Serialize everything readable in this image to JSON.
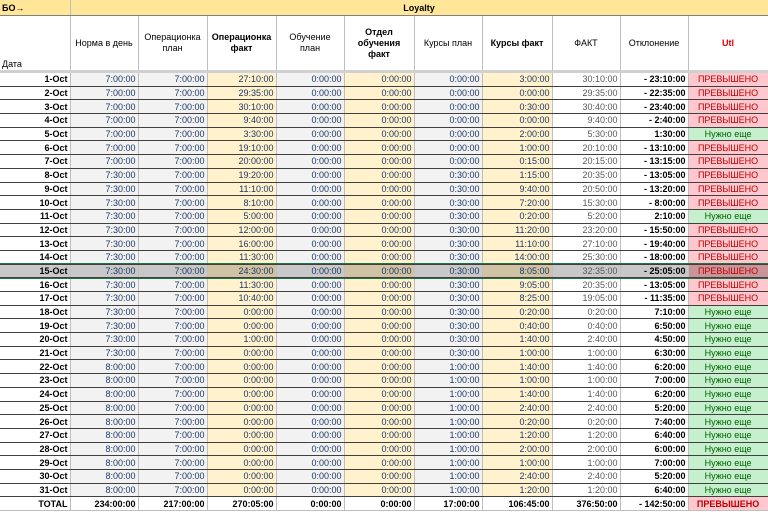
{
  "top": {
    "left": "БО→",
    "title": "Loyalty"
  },
  "columns": [
    "Дата",
    "Норма в день",
    "Операционка план",
    "Операционка факт",
    "Обучение план",
    "Отдел обучения факт",
    "Курсы план",
    "Курсы факт",
    "ФАКТ",
    "Отклонение",
    "Utl"
  ],
  "selected_row": "15-Oct",
  "colors": {
    "over_bg": "#ffc7ce",
    "over_text": "#c00000",
    "need_bg": "#c6efce",
    "need_text": "#006100",
    "plan_bg": "#f2f2f2",
    "fact_bg": "#fff2cc",
    "header_bg": "#ffe699"
  },
  "rows": [
    [
      "1-Oct",
      "7:00:00",
      "7:00:00",
      "27:10:00",
      "0:00:00",
      "0:00:00",
      "0:00:00",
      "3:00:00",
      "30:10:00",
      "- 23:10:00",
      "ПРЕВЫШЕНО"
    ],
    [
      "2-Oct",
      "7:00:00",
      "7:00:00",
      "29:35:00",
      "0:00:00",
      "0:00:00",
      "0:00:00",
      "0:00:00",
      "29:35:00",
      "- 22:35:00",
      "ПРЕВЫШЕНО"
    ],
    [
      "3-Oct",
      "7:00:00",
      "7:00:00",
      "30:10:00",
      "0:00:00",
      "0:00:00",
      "0:00:00",
      "0:30:00",
      "30:40:00",
      "- 23:40:00",
      "ПРЕВЫШЕНО"
    ],
    [
      "4-Oct",
      "7:00:00",
      "7:00:00",
      "9:40:00",
      "0:00:00",
      "0:00:00",
      "0:00:00",
      "0:00:00",
      "9:40:00",
      "- 2:40:00",
      "ПРЕВЫШЕНО"
    ],
    [
      "5-Oct",
      "7:00:00",
      "7:00:00",
      "3:30:00",
      "0:00:00",
      "0:00:00",
      "0:00:00",
      "2:00:00",
      "5:30:00",
      "1:30:00",
      "Нужно еще"
    ],
    [
      "6-Oct",
      "7:00:00",
      "7:00:00",
      "19:10:00",
      "0:00:00",
      "0:00:00",
      "0:00:00",
      "1:00:00",
      "20:10:00",
      "- 13:10:00",
      "ПРЕВЫШЕНО"
    ],
    [
      "7-Oct",
      "7:00:00",
      "7:00:00",
      "20:00:00",
      "0:00:00",
      "0:00:00",
      "0:00:00",
      "0:15:00",
      "20:15:00",
      "- 13:15:00",
      "ПРЕВЫШЕНО"
    ],
    [
      "8-Oct",
      "7:30:00",
      "7:00:00",
      "19:20:00",
      "0:00:00",
      "0:00:00",
      "0:30:00",
      "1:15:00",
      "20:35:00",
      "- 13:05:00",
      "ПРЕВЫШЕНО"
    ],
    [
      "9-Oct",
      "7:30:00",
      "7:00:00",
      "11:10:00",
      "0:00:00",
      "0:00:00",
      "0:30:00",
      "9:40:00",
      "20:50:00",
      "- 13:20:00",
      "ПРЕВЫШЕНО"
    ],
    [
      "10-Oct",
      "7:30:00",
      "7:00:00",
      "8:10:00",
      "0:00:00",
      "0:00:00",
      "0:30:00",
      "7:20:00",
      "15:30:00",
      "- 8:00:00",
      "ПРЕВЫШЕНО"
    ],
    [
      "11-Oct",
      "7:30:00",
      "7:00:00",
      "5:00:00",
      "0:00:00",
      "0:00:00",
      "0:30:00",
      "0:20:00",
      "5:20:00",
      "2:10:00",
      "Нужно еще"
    ],
    [
      "12-Oct",
      "7:30:00",
      "7:00:00",
      "12:00:00",
      "0:00:00",
      "0:00:00",
      "0:30:00",
      "11:20:00",
      "23:20:00",
      "- 15:50:00",
      "ПРЕВЫШЕНО"
    ],
    [
      "13-Oct",
      "7:30:00",
      "7:00:00",
      "16:00:00",
      "0:00:00",
      "0:00:00",
      "0:30:00",
      "11:10:00",
      "27:10:00",
      "- 19:40:00",
      "ПРЕВЫШЕНО"
    ],
    [
      "14-Oct",
      "7:30:00",
      "7:00:00",
      "11:30:00",
      "0:00:00",
      "0:00:00",
      "0:30:00",
      "14:00:00",
      "25:30:00",
      "- 18:00:00",
      "ПРЕВЫШЕНО"
    ],
    [
      "15-Oct",
      "7:30:00",
      "7:00:00",
      "24:30:00",
      "0:00:00",
      "0:00:00",
      "0:30:00",
      "8:05:00",
      "32:35:00",
      "- 25:05:00",
      "ПРЕВЫШЕНО"
    ],
    [
      "16-Oct",
      "7:30:00",
      "7:00:00",
      "11:30:00",
      "0:00:00",
      "0:00:00",
      "0:30:00",
      "9:05:00",
      "20:35:00",
      "- 13:05:00",
      "ПРЕВЫШЕНО"
    ],
    [
      "17-Oct",
      "7:30:00",
      "7:00:00",
      "10:40:00",
      "0:00:00",
      "0:00:00",
      "0:30:00",
      "8:25:00",
      "19:05:00",
      "- 11:35:00",
      "ПРЕВЫШЕНО"
    ],
    [
      "18-Oct",
      "7:30:00",
      "7:00:00",
      "0:00:00",
      "0:00:00",
      "0:00:00",
      "0:30:00",
      "0:20:00",
      "0:20:00",
      "7:10:00",
      "Нужно еще"
    ],
    [
      "19-Oct",
      "7:30:00",
      "7:00:00",
      "0:00:00",
      "0:00:00",
      "0:00:00",
      "0:30:00",
      "0:40:00",
      "0:40:00",
      "6:50:00",
      "Нужно еще"
    ],
    [
      "20-Oct",
      "7:30:00",
      "7:00:00",
      "1:00:00",
      "0:00:00",
      "0:00:00",
      "0:30:00",
      "1:40:00",
      "2:40:00",
      "4:50:00",
      "Нужно еще"
    ],
    [
      "21-Oct",
      "7:30:00",
      "7:00:00",
      "0:00:00",
      "0:00:00",
      "0:00:00",
      "0:30:00",
      "1:00:00",
      "1:00:00",
      "6:30:00",
      "Нужно еще"
    ],
    [
      "22-Oct",
      "8:00:00",
      "7:00:00",
      "0:00:00",
      "0:00:00",
      "0:00:00",
      "1:00:00",
      "1:40:00",
      "1:40:00",
      "6:20:00",
      "Нужно еще"
    ],
    [
      "23-Oct",
      "8:00:00",
      "7:00:00",
      "0:00:00",
      "0:00:00",
      "0:00:00",
      "1:00:00",
      "1:00:00",
      "1:00:00",
      "7:00:00",
      "Нужно еще"
    ],
    [
      "24-Oct",
      "8:00:00",
      "7:00:00",
      "0:00:00",
      "0:00:00",
      "0:00:00",
      "1:00:00",
      "1:40:00",
      "1:40:00",
      "6:20:00",
      "Нужно еще"
    ],
    [
      "25-Oct",
      "8:00:00",
      "7:00:00",
      "0:00:00",
      "0:00:00",
      "0:00:00",
      "1:00:00",
      "2:40:00",
      "2:40:00",
      "5:20:00",
      "Нужно еще"
    ],
    [
      "26-Oct",
      "8:00:00",
      "7:00:00",
      "0:00:00",
      "0:00:00",
      "0:00:00",
      "1:00:00",
      "0:20:00",
      "0:20:00",
      "7:40:00",
      "Нужно еще"
    ],
    [
      "27-Oct",
      "8:00:00",
      "7:00:00",
      "0:00:00",
      "0:00:00",
      "0:00:00",
      "1:00:00",
      "1:20:00",
      "1:20:00",
      "6:40:00",
      "Нужно еще"
    ],
    [
      "28-Oct",
      "8:00:00",
      "7:00:00",
      "0:00:00",
      "0:00:00",
      "0:00:00",
      "1:00:00",
      "2:00:00",
      "2:00:00",
      "6:00:00",
      "Нужно еще"
    ],
    [
      "29-Oct",
      "8:00:00",
      "7:00:00",
      "0:00:00",
      "0:00:00",
      "0:00:00",
      "1:00:00",
      "1:00:00",
      "1:00:00",
      "7:00:00",
      "Нужно еще"
    ],
    [
      "30-Oct",
      "8:00:00",
      "7:00:00",
      "0:00:00",
      "0:00:00",
      "0:00:00",
      "1:00:00",
      "2:40:00",
      "2:40:00",
      "5:20:00",
      "Нужно еще"
    ],
    [
      "31-Oct",
      "8:00:00",
      "7:00:00",
      "0:00:00",
      "0:00:00",
      "0:00:00",
      "1:00:00",
      "1:20:00",
      "1:20:00",
      "6:40:00",
      "Нужно еще"
    ]
  ],
  "total": [
    "TOTAL",
    "234:00:00",
    "217:00:00",
    "270:05:00",
    "0:00:00",
    "0:00:00",
    "17:00:00",
    "106:45:00",
    "376:50:00",
    "- 142:50:00",
    "ПРЕВЫШЕНО"
  ]
}
